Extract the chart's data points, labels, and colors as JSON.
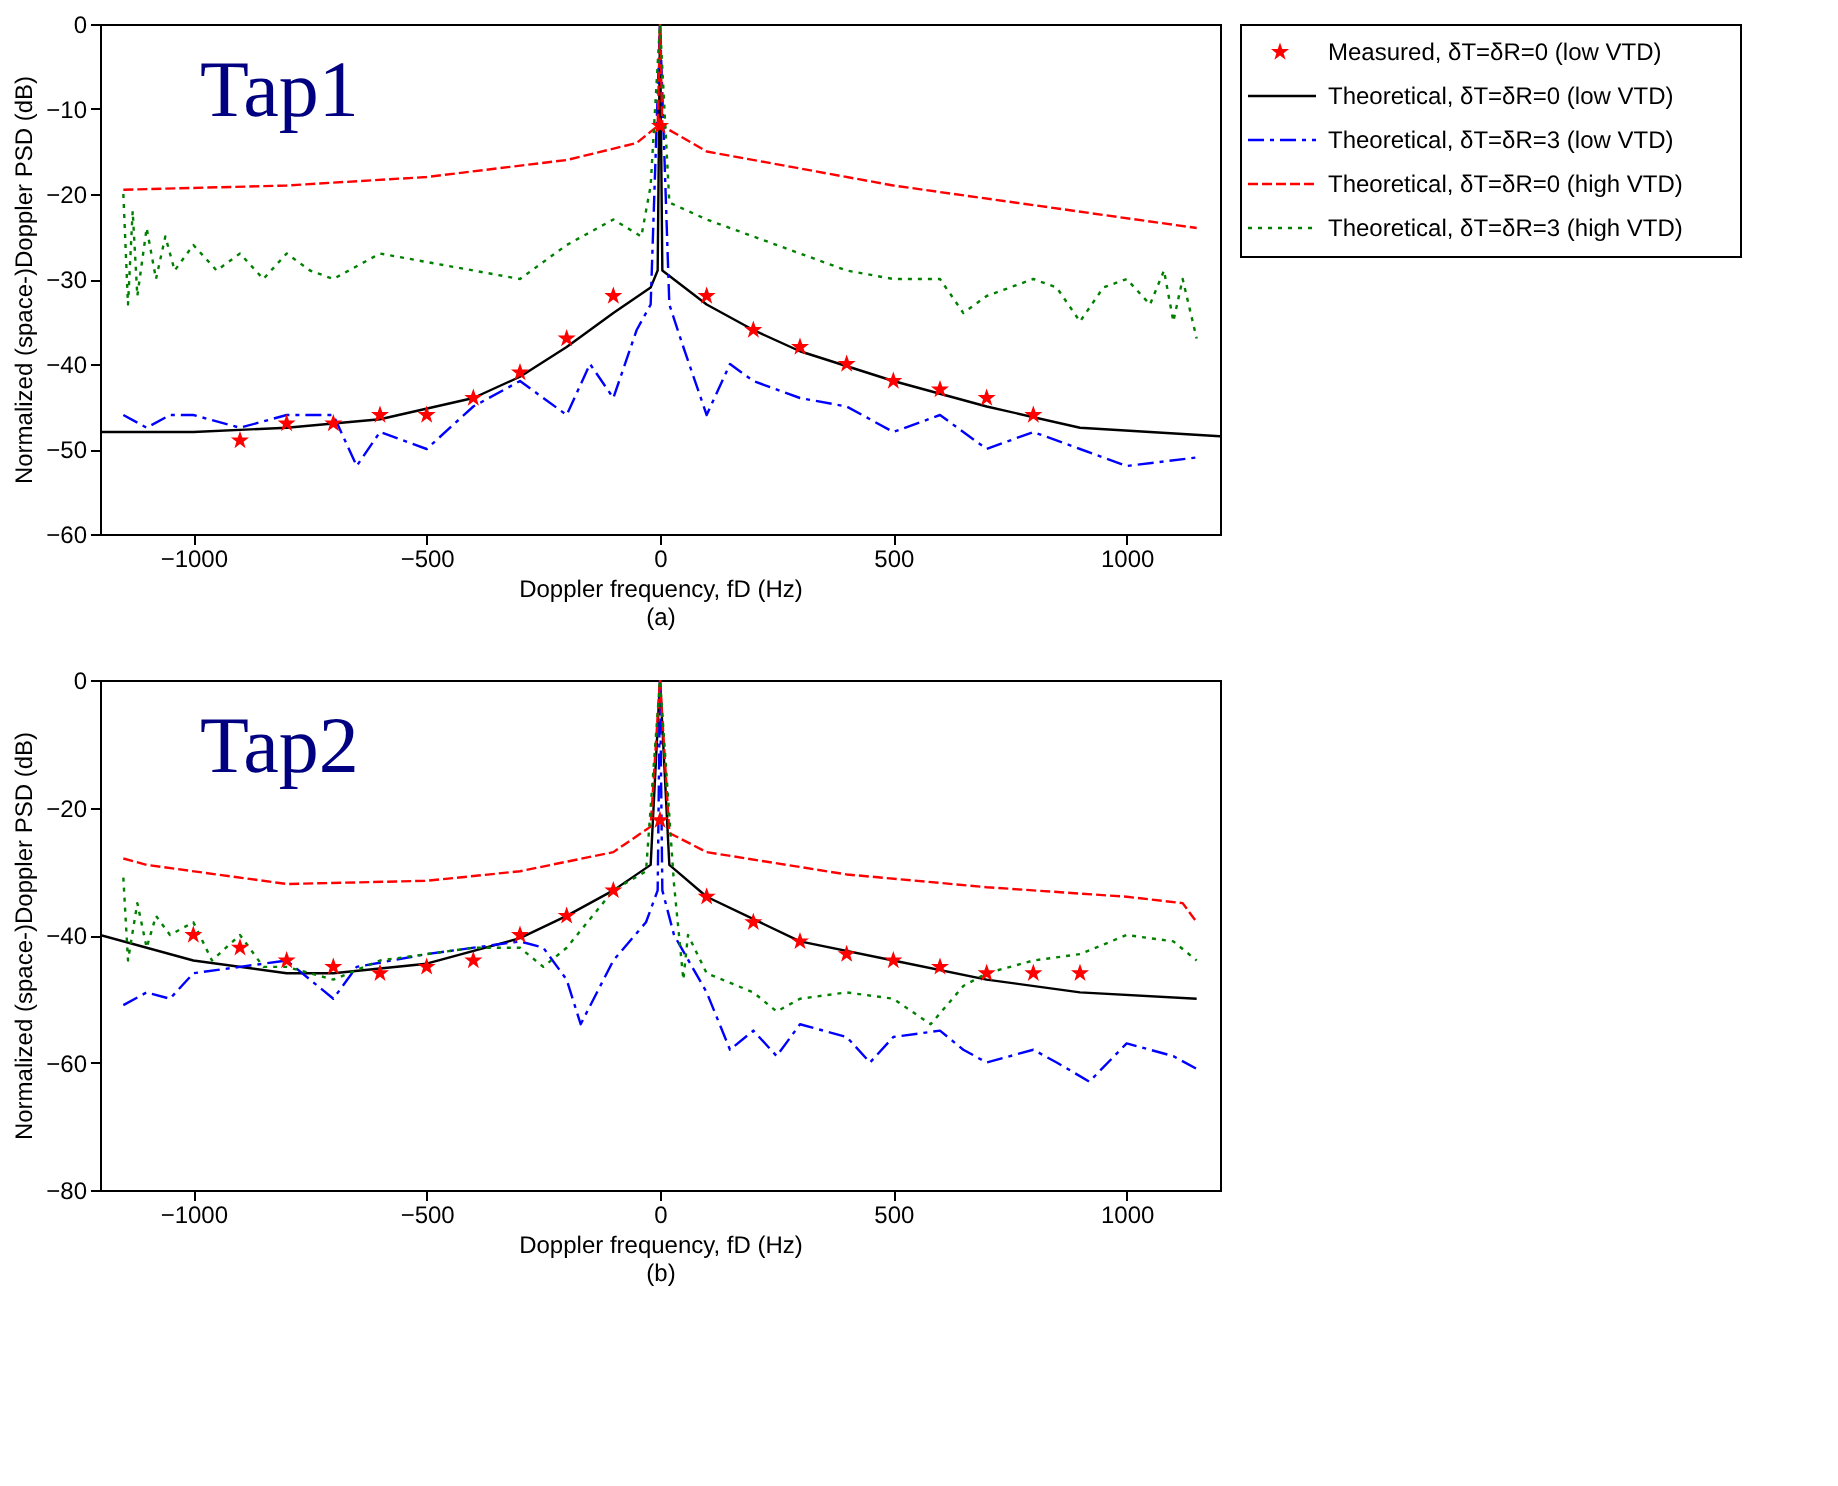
{
  "chart_data": [
    {
      "type": "line",
      "xlabel": "Doppler frequency, fD (Hz)",
      "ylabel": "Normalized (space-)Doppler PSD (dB)",
      "annotations": [
        "Tap1",
        "(a)"
      ],
      "xlim": [
        -1200,
        1200
      ],
      "ylim": [
        -60,
        0
      ],
      "xticks": [
        -1000,
        -500,
        0,
        500,
        1000
      ],
      "yticks": [
        -60,
        -50,
        -40,
        -30,
        -20,
        -10,
        0
      ],
      "grid": false,
      "legend": "right",
      "series": [
        {
          "name": "Measured, δT=δR=0 (low VTD)",
          "type": "scatter",
          "marker": "star",
          "color": "#ff0000",
          "x": [
            -900,
            -800,
            -700,
            -600,
            -500,
            -400,
            -300,
            -200,
            -100,
            0,
            100,
            200,
            300,
            400,
            500,
            600,
            700,
            800
          ],
          "values": [
            -49,
            -47,
            -47,
            -46,
            -46,
            -44,
            -41,
            -37,
            -32,
            -12,
            -32,
            -36,
            -38,
            -40,
            -42,
            -43,
            -44,
            -46
          ]
        },
        {
          "name": "Theoretical, δT=δR=0 (low VTD)",
          "color": "#000000",
          "line_style": "solid",
          "x": [
            -1200,
            -1000,
            -800,
            -600,
            -400,
            -300,
            -200,
            -100,
            -20,
            -5,
            0,
            5,
            100,
            200,
            300,
            500,
            700,
            900,
            1200
          ],
          "values": [
            -48,
            -48,
            -47.5,
            -46.5,
            -44,
            -41.5,
            -38,
            -34,
            -31,
            -29,
            0,
            -29,
            -33,
            -36,
            -38.5,
            -42,
            -45,
            -47.5,
            -48.5
          ]
        },
        {
          "name": "Theoretical, δT=δR=3 (low VTD)",
          "color": "#0000ff",
          "line_style": "dashdot",
          "x": [
            -1150,
            -1100,
            -1050,
            -1000,
            -900,
            -800,
            -700,
            -650,
            -600,
            -500,
            -400,
            -300,
            -200,
            -150,
            -100,
            -50,
            -20,
            0,
            20,
            50,
            100,
            150,
            200,
            300,
            400,
            500,
            600,
            700,
            800,
            900,
            1000,
            1150
          ],
          "values": [
            -46,
            -47.5,
            -46,
            -46,
            -47.5,
            -46,
            -46,
            -52,
            -48,
            -50,
            -45,
            -42,
            -46,
            -40,
            -44,
            -36,
            -33,
            0,
            -33,
            -38,
            -46,
            -40,
            -42,
            -44,
            -45,
            -48,
            -46,
            -50,
            -48,
            -50,
            -52,
            -51
          ]
        },
        {
          "name": "Theoretical, δT=δR=0 (high VTD)",
          "color": "#ff0000",
          "line_style": "dashed",
          "x": [
            -1150,
            -800,
            -500,
            -200,
            -50,
            -5,
            0,
            5,
            100,
            500,
            1150
          ],
          "values": [
            -19.5,
            -19,
            -18,
            -16,
            -14,
            -12,
            0,
            -12,
            -15,
            -19,
            -24
          ]
        },
        {
          "name": "Theoretical, δT=δR=3 (high VTD)",
          "color": "#008000",
          "line_style": "dotted",
          "x": [
            -1150,
            -1140,
            -1130,
            -1120,
            -1100,
            -1080,
            -1060,
            -1040,
            -1000,
            -950,
            -900,
            -850,
            -800,
            -750,
            -700,
            -600,
            -500,
            -400,
            -300,
            -200,
            -100,
            -40,
            -20,
            0,
            20,
            100,
            200,
            300,
            400,
            500,
            600,
            650,
            700,
            800,
            850,
            900,
            950,
            1000,
            1050,
            1080,
            1100,
            1120,
            1150
          ],
          "values": [
            -20,
            -33,
            -22,
            -32,
            -24,
            -30,
            -25,
            -29,
            -26,
            -29,
            -27,
            -30,
            -27,
            -29,
            -30,
            -27,
            -28,
            -29,
            -30,
            -26,
            -23,
            -25,
            -19,
            0,
            -21,
            -23,
            -25,
            -27,
            -29,
            -30,
            -30,
            -34,
            -32,
            -30,
            -31,
            -35,
            -31,
            -30,
            -33,
            -29,
            -35,
            -30,
            -37
          ]
        }
      ]
    },
    {
      "type": "line",
      "xlabel": "Doppler frequency, fD (Hz)",
      "ylabel": "Normalized (space-)Doppler PSD (dB)",
      "annotations": [
        "Tap2",
        "(b)"
      ],
      "xlim": [
        -1200,
        1200
      ],
      "ylim": [
        -80,
        0
      ],
      "xticks": [
        -1000,
        -500,
        0,
        500,
        1000
      ],
      "yticks": [
        -80,
        -60,
        -40,
        -20,
        0
      ],
      "grid": false,
      "series": [
        {
          "type": "scatter",
          "marker": "star",
          "color": "#ff0000",
          "x": [
            -1000,
            -900,
            -800,
            -700,
            -600,
            -500,
            -400,
            -300,
            -200,
            -100,
            0,
            100,
            200,
            300,
            400,
            500,
            600,
            700,
            800,
            900
          ],
          "values": [
            -40,
            -42,
            -44,
            -45,
            -46,
            -45,
            -44,
            -40,
            -37,
            -33,
            -22,
            -34,
            -38,
            -41,
            -43,
            -44,
            -45,
            -46,
            -46,
            -46
          ]
        },
        {
          "color": "#000000",
          "line_style": "solid",
          "x": [
            -1200,
            -1000,
            -800,
            -700,
            -500,
            -300,
            -200,
            -100,
            -20,
            0,
            20,
            100,
            300,
            500,
            700,
            900,
            1150
          ],
          "values": [
            -40,
            -44,
            -46,
            -46,
            -44.5,
            -40.5,
            -37,
            -33,
            -29,
            0,
            -29,
            -34,
            -41,
            -44,
            -47,
            -49,
            -50
          ]
        },
        {
          "color": "#0000ff",
          "line_style": "dashdot",
          "x": [
            -1150,
            -1100,
            -1050,
            -1000,
            -900,
            -800,
            -700,
            -650,
            -500,
            -300,
            -250,
            -200,
            -170,
            -100,
            -30,
            -5,
            0,
            5,
            30,
            100,
            150,
            200,
            250,
            300,
            400,
            450,
            500,
            600,
            650,
            700,
            800,
            850,
            920,
            1000,
            1050,
            1100,
            1150
          ],
          "values": [
            -51,
            -49,
            -50,
            -46,
            -45,
            -44,
            -50,
            -45,
            -43,
            -41,
            -42,
            -47,
            -54,
            -44,
            -38,
            -33,
            0,
            -33,
            -40,
            -49,
            -58,
            -55,
            -59,
            -54,
            -56,
            -60,
            -56,
            -55,
            -58,
            -60,
            -58,
            -60,
            -63,
            -57,
            -58,
            -59,
            -61
          ]
        },
        {
          "color": "#ff0000",
          "line_style": "dashed",
          "x": [
            -1150,
            -1100,
            -800,
            -500,
            -300,
            -100,
            -20,
            0,
            20,
            100,
            400,
            700,
            1000,
            1120,
            1150
          ],
          "values": [
            -28,
            -29,
            -32,
            -31.5,
            -30,
            -27,
            -23,
            0,
            -24,
            -27,
            -30.5,
            -32.5,
            -34,
            -35,
            -38
          ]
        },
        {
          "color": "#008000",
          "line_style": "dotted",
          "x": [
            -1150,
            -1140,
            -1120,
            -1100,
            -1080,
            -1050,
            -1000,
            -960,
            -900,
            -850,
            -800,
            -700,
            -600,
            -500,
            -400,
            -300,
            -250,
            -200,
            -100,
            -30,
            0,
            30,
            50,
            60,
            100,
            200,
            250,
            300,
            400,
            500,
            580,
            650,
            700,
            800,
            900,
            1000,
            1100,
            1150
          ],
          "values": [
            -31,
            -44,
            -35,
            -42,
            -37,
            -40,
            -38,
            -44,
            -40,
            -45,
            -45,
            -47,
            -44,
            -43,
            -42,
            -42,
            -45,
            -42,
            -33,
            -30,
            0,
            -32,
            -47,
            -40,
            -46,
            -49,
            -52,
            -50,
            -49,
            -50,
            -54,
            -48,
            -46,
            -44,
            -43,
            -40,
            -41,
            -44
          ]
        }
      ]
    }
  ]
}
